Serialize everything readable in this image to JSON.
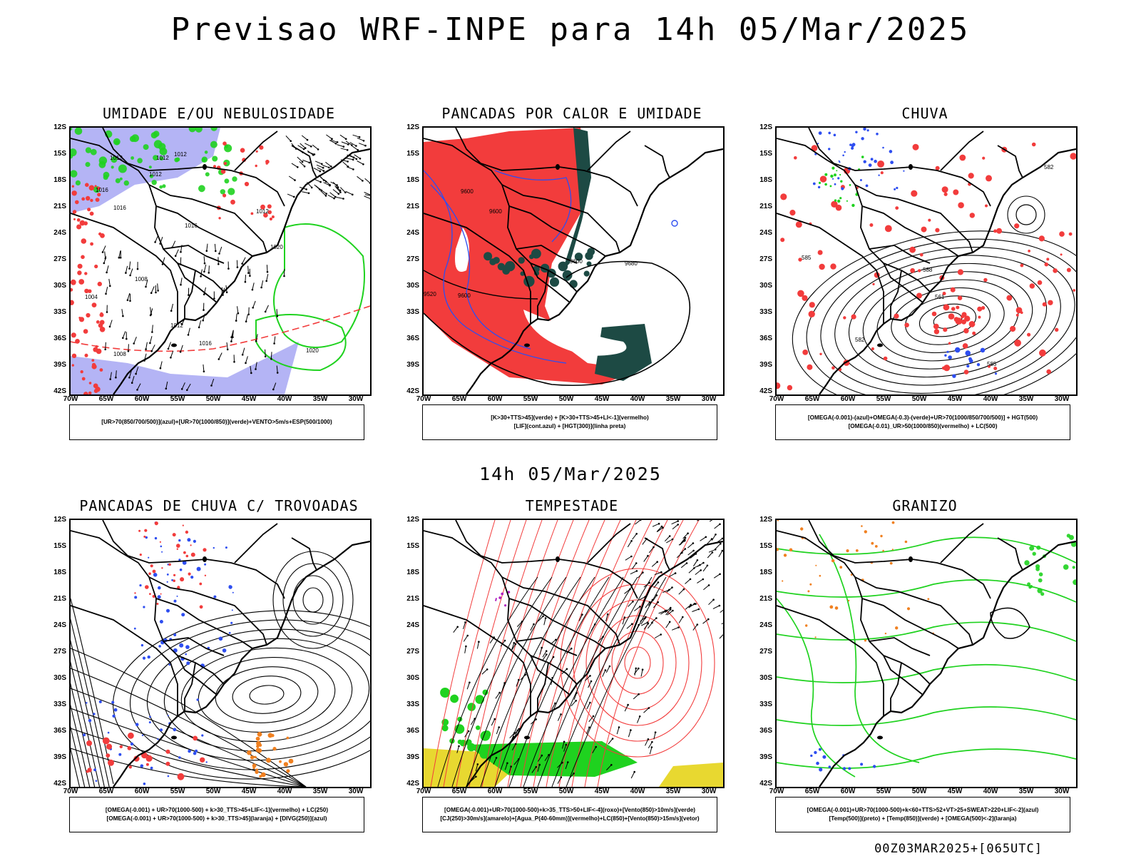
{
  "title": "Previsao WRF-INPE  para 14h 05/Mar/2025",
  "subtitle": "14h 05/Mar/2025",
  "footer": "00Z03MAR2025+[065UTC]",
  "lat_ticks": [
    "12S",
    "15S",
    "18S",
    "21S",
    "24S",
    "27S",
    "30S",
    "33S",
    "36S",
    "39S",
    "42S"
  ],
  "lon_ticks": [
    "70W",
    "65W",
    "60W",
    "55W",
    "50W",
    "45W",
    "40W",
    "35W",
    "30W"
  ],
  "panels": [
    {
      "title": "UMIDADE E/OU NEBULOSIDADE",
      "legend": [
        "[UR>70(850/700/500)](azul)+[UR>70(1000/850)](verde)+VENTO>5m/s+ESP(500/1000)"
      ],
      "contour_labels": [
        "1012",
        "1012",
        "1012",
        "1016",
        "1012",
        "1016",
        "1016",
        "1020",
        "1008",
        "1004",
        "1012",
        "1016",
        "1020",
        "1008",
        "1012"
      ]
    },
    {
      "title": "PANCADAS POR CALOR E UMIDADE",
      "legend": [
        "[K>30+TTS>45](verde) + [K>30+TTS>45+LI<-1](vermelho)",
        "[LIF](cont.azul) + [HGT(300)](linha preta)"
      ],
      "contour_labels": [
        "9600",
        "9600",
        "9680",
        "9600",
        "9520",
        "9600"
      ]
    },
    {
      "title": "CHUVA",
      "legend": [
        "[OMEGA(-0.001)-(azul)+OMEGA(-0.3)-(verde)+UR>70(1000/850/700/500)] + HGT(500)",
        "[OMEGA(-0.01)_UR>50(1000/850)(vermelho) + LC(500)"
      ],
      "contour_labels": [
        "582",
        "561",
        "585",
        "588",
        "585",
        "582"
      ]
    },
    {
      "title": "PANCADAS DE CHUVA C/ TROVOADAS",
      "legend": [
        "[OMEGA(-0.001) + UR>70(1000-500) + k>30_TTS>45+LIF<-1](vermelho) + LC(250)",
        "[OMEGA(-0.001) + UR>70(1000-500) + k>30_TTS>45](laranja) + [DIVG(250)](azul)"
      ],
      "contour_labels": []
    },
    {
      "title": "TEMPESTADE",
      "legend": [
        "[OMEGA(-0.001)+UR>70(1000-500)+k>35_TTS>50+LIF<-4](roxo)+[Vento(850)>10m/s](verde)",
        "[CJ(250)>30m/s](amarelo)+[Agua_P(40-60mm)](vermelho)+LC(850)+[Vento(850)>15m/s](vetor)"
      ],
      "contour_labels": []
    },
    {
      "title": "GRANIZO",
      "legend": [
        "[OMEGA(-0.001)+UR>70(1000-500)+k<60+TTS>52+VT>25+SWEAT>220+LIF<-2](azul)",
        "[Temp(500)](preto) + [Temp(850)](verde) + [OMEGA(500)<-2](laranja)"
      ],
      "contour_labels": []
    }
  ],
  "colors": {
    "humid_blue": "#9b9bf2",
    "humid_green": "#1fd21f",
    "red": "#f23c3c",
    "dark_teal": "#1d4a44",
    "blue": "#2e4ef0",
    "orange": "#f08020",
    "yellow": "#e8d830",
    "purple": "#b020c0"
  }
}
